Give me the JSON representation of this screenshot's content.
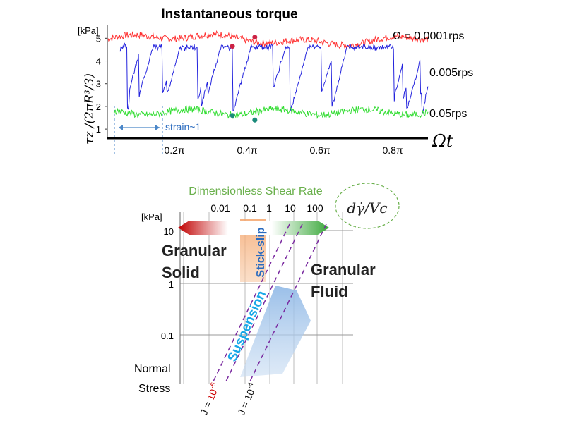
{
  "chart_data": [
    {
      "type": "line",
      "title": "Instantaneous torque",
      "ylabel_unit": "[kPa]",
      "ylabel_expr": "τz /(2πR³/3)",
      "xlabel": "Ωt",
      "xticks": [
        "0.2π",
        "0.4π",
        "0.6π",
        "0.8π"
      ],
      "yticks": [
        "1",
        "2",
        "3",
        "4",
        "5"
      ],
      "ylim": [
        0.6,
        5.6
      ],
      "xlim": [
        0,
        1
      ],
      "annotation": "strain~1",
      "series": [
        {
          "name": "Ω = 0.0001rps",
          "color": "#ff3333",
          "level": 4.95,
          "amplitude": 0.25
        },
        {
          "name": "0.005rps",
          "color": "#2222dd",
          "level": 3.8,
          "amplitude": 1.6
        },
        {
          "name": "0.05rps",
          "color": "#33dd33",
          "level": 1.75,
          "amplitude": 0.25
        }
      ],
      "markers": [
        {
          "x": 0.39,
          "y": 4.65,
          "color": "#cc2244"
        },
        {
          "x": 0.46,
          "y": 5.05,
          "color": "#cc2244"
        },
        {
          "x": 0.39,
          "y": 1.6,
          "color": "#1a8a7a"
        },
        {
          "x": 0.46,
          "y": 1.4,
          "color": "#1a8a7a"
        }
      ]
    },
    {
      "type": "diagram",
      "top_axis_title": "Dimensionless Shear Rate",
      "top_axis_label_expr": "dγ̇/Vc",
      "top_axis_ticks": [
        "0.01",
        "0.1",
        "1",
        "10",
        "100"
      ],
      "left_axis_unit": "[kPa]",
      "left_axis_ticks": [
        "10",
        "1",
        "0.1"
      ],
      "left_axis_title": "Normal Stress",
      "regions": [
        "Granular Solid",
        "Stick-slip",
        "Granular Fluid",
        "Suspension"
      ],
      "line_labels": [
        {
          "prefix": "J = ",
          "value": "10",
          "exponent": "-6",
          "color": "#cc0000"
        },
        {
          "prefix": "J = ",
          "value": "10",
          "exponent": "-4",
          "color": "#111111"
        }
      ],
      "colors": {
        "solid_red": "#c00000",
        "fluid_green": "#3aa83a",
        "stick_slip": "#f4a46a",
        "suspension": "#9fc4ea",
        "dashed": "#7a2aa0",
        "stick_slip_text": "#2a6bbf",
        "suspension_text": "#1aa8e8",
        "title_green": "#6ab04c"
      }
    }
  ]
}
